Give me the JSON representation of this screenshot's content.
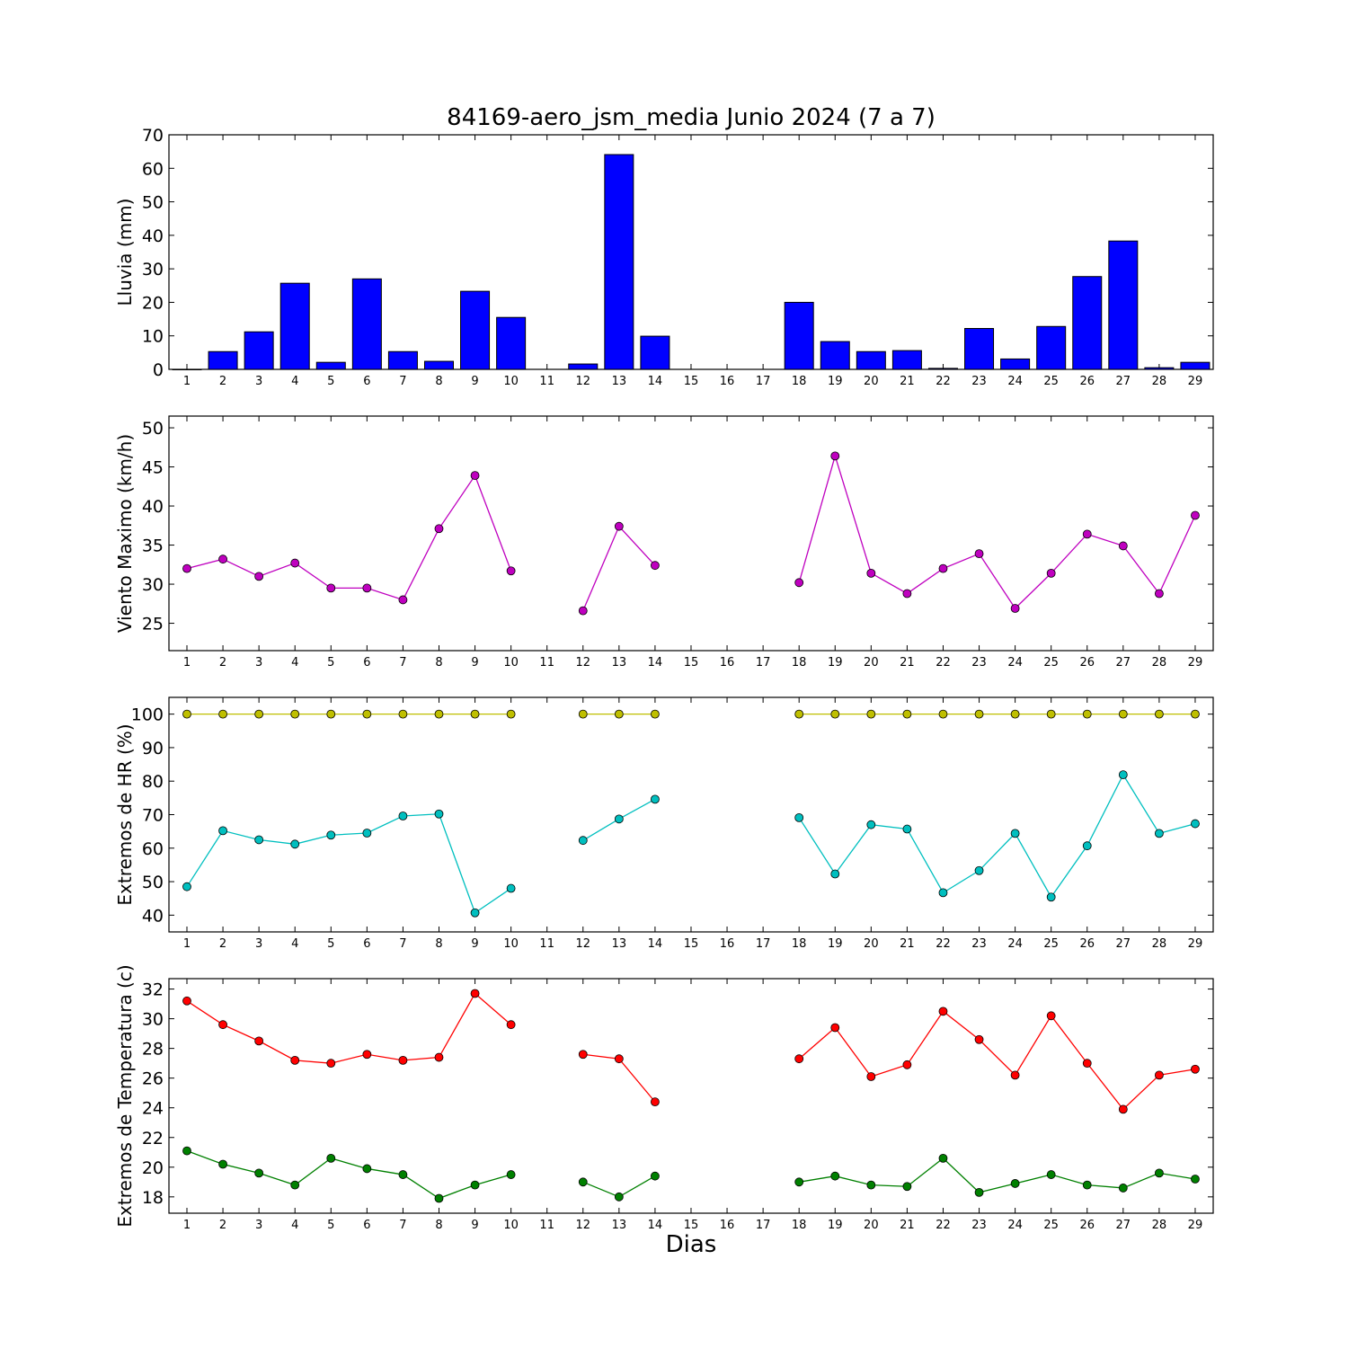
{
  "title": "84169-aero_jsm_media Junio 2024  (7 a 7)",
  "xlabel": "Dias",
  "chart_data": [
    {
      "type": "bar",
      "ylabel": "Lluvia (mm)",
      "ylim": [
        0,
        70
      ],
      "yticks": [
        0,
        10,
        20,
        30,
        40,
        50,
        60,
        70
      ],
      "x": [
        1,
        2,
        3,
        4,
        5,
        6,
        7,
        8,
        9,
        10,
        11,
        12,
        13,
        14,
        15,
        16,
        17,
        18,
        19,
        20,
        21,
        22,
        23,
        24,
        25,
        26,
        27,
        28,
        29
      ],
      "xticks": [
        "1",
        "2",
        "3",
        "4",
        "5",
        "6",
        "7",
        "8",
        "9",
        "10",
        "11",
        "12",
        "13",
        "14",
        "15",
        "16",
        "17",
        "18",
        "19",
        "20",
        "21",
        "22",
        "23",
        "24",
        "25",
        "26",
        "27",
        "28",
        "29"
      ],
      "series": [
        {
          "color": "#0000ff",
          "values": [
            0,
            5.3,
            11.2,
            25.7,
            2.1,
            27.0,
            5.3,
            2.4,
            23.3,
            15.5,
            null,
            1.6,
            64.1,
            9.9,
            null,
            null,
            null,
            20.0,
            8.3,
            5.3,
            5.6,
            0.3,
            12.2,
            3.1,
            12.8,
            27.7,
            38.3,
            0.5,
            2.1
          ]
        }
      ]
    },
    {
      "type": "line",
      "ylabel": "Viento Maximo (km/h)",
      "ylim": [
        21.5,
        51.5
      ],
      "yticks": [
        25,
        30,
        35,
        40,
        45,
        50
      ],
      "x": [
        1,
        2,
        3,
        4,
        5,
        6,
        7,
        8,
        9,
        10,
        11,
        12,
        13,
        14,
        15,
        16,
        17,
        18,
        19,
        20,
        21,
        22,
        23,
        24,
        25,
        26,
        27,
        28,
        29
      ],
      "xticks": [
        "1",
        "2",
        "3",
        "4",
        "5",
        "6",
        "7",
        "8",
        "9",
        "10",
        "11",
        "12",
        "13",
        "14",
        "15",
        "16",
        "17",
        "18",
        "19",
        "20",
        "21",
        "22",
        "23",
        "24",
        "25",
        "26",
        "27",
        "28",
        "29"
      ],
      "series": [
        {
          "color": "#bf00bf",
          "values": [
            32.0,
            33.2,
            31.0,
            32.7,
            29.5,
            29.5,
            28.0,
            37.1,
            43.9,
            31.7,
            null,
            26.6,
            37.4,
            32.4,
            null,
            null,
            null,
            30.2,
            46.4,
            31.4,
            28.8,
            32.0,
            33.9,
            26.9,
            31.4,
            36.4,
            34.9,
            28.8,
            38.8
          ]
        }
      ]
    },
    {
      "type": "line",
      "ylabel": "Extremos de HR (%)",
      "ylim": [
        35,
        105
      ],
      "yticks": [
        40,
        50,
        60,
        70,
        80,
        90,
        100
      ],
      "x": [
        1,
        2,
        3,
        4,
        5,
        6,
        7,
        8,
        9,
        10,
        11,
        12,
        13,
        14,
        15,
        16,
        17,
        18,
        19,
        20,
        21,
        22,
        23,
        24,
        25,
        26,
        27,
        28,
        29
      ],
      "xticks": [
        "1",
        "2",
        "3",
        "4",
        "5",
        "6",
        "7",
        "8",
        "9",
        "10",
        "11",
        "12",
        "13",
        "14",
        "15",
        "16",
        "17",
        "18",
        "19",
        "20",
        "21",
        "22",
        "23",
        "24",
        "25",
        "26",
        "27",
        "28",
        "29"
      ],
      "series": [
        {
          "color": "#bfbf00",
          "values": [
            100,
            100,
            100,
            100,
            100,
            100,
            100,
            100,
            100,
            100,
            null,
            100,
            100,
            100,
            null,
            null,
            null,
            100,
            100,
            100,
            100,
            100,
            100,
            100,
            100,
            100,
            100,
            100,
            100
          ]
        },
        {
          "color": "#00bfbf",
          "values": [
            48.5,
            65.2,
            62.5,
            61.2,
            63.9,
            64.5,
            69.6,
            70.2,
            40.7,
            48.0,
            null,
            62.3,
            68.7,
            74.6,
            null,
            null,
            null,
            69.1,
            52.3,
            67.0,
            65.7,
            46.7,
            53.3,
            64.4,
            45.4,
            60.7,
            81.9,
            64.4,
            67.3
          ]
        }
      ]
    },
    {
      "type": "line",
      "ylabel": "Extremos de Temperatura (c)",
      "ylim": [
        16.9,
        32.7
      ],
      "yticks": [
        18,
        20,
        22,
        24,
        26,
        28,
        30,
        32
      ],
      "x": [
        1,
        2,
        3,
        4,
        5,
        6,
        7,
        8,
        9,
        10,
        11,
        12,
        13,
        14,
        15,
        16,
        17,
        18,
        19,
        20,
        21,
        22,
        23,
        24,
        25,
        26,
        27,
        28,
        29
      ],
      "xticks": [
        "1",
        "2",
        "3",
        "4",
        "5",
        "6",
        "7",
        "8",
        "9",
        "10",
        "11",
        "12",
        "13",
        "14",
        "15",
        "16",
        "17",
        "18",
        "19",
        "20",
        "21",
        "22",
        "23",
        "24",
        "25",
        "26",
        "27",
        "28",
        "29"
      ],
      "series": [
        {
          "color": "#ff0000",
          "values": [
            31.2,
            29.6,
            28.5,
            27.2,
            27.0,
            27.6,
            27.2,
            27.4,
            31.7,
            29.6,
            null,
            27.6,
            27.3,
            24.4,
            null,
            null,
            null,
            27.3,
            29.4,
            26.1,
            26.9,
            30.5,
            28.6,
            26.2,
            30.2,
            27.0,
            23.9,
            26.2,
            26.6
          ]
        },
        {
          "color": "#008000",
          "values": [
            21.1,
            20.2,
            19.6,
            18.8,
            20.6,
            19.9,
            19.5,
            17.9,
            18.8,
            19.5,
            null,
            19.0,
            18.0,
            19.4,
            null,
            null,
            null,
            19.0,
            19.4,
            18.8,
            18.7,
            20.6,
            18.3,
            18.9,
            19.5,
            18.8,
            18.6,
            19.6,
            19.2
          ]
        }
      ]
    }
  ]
}
